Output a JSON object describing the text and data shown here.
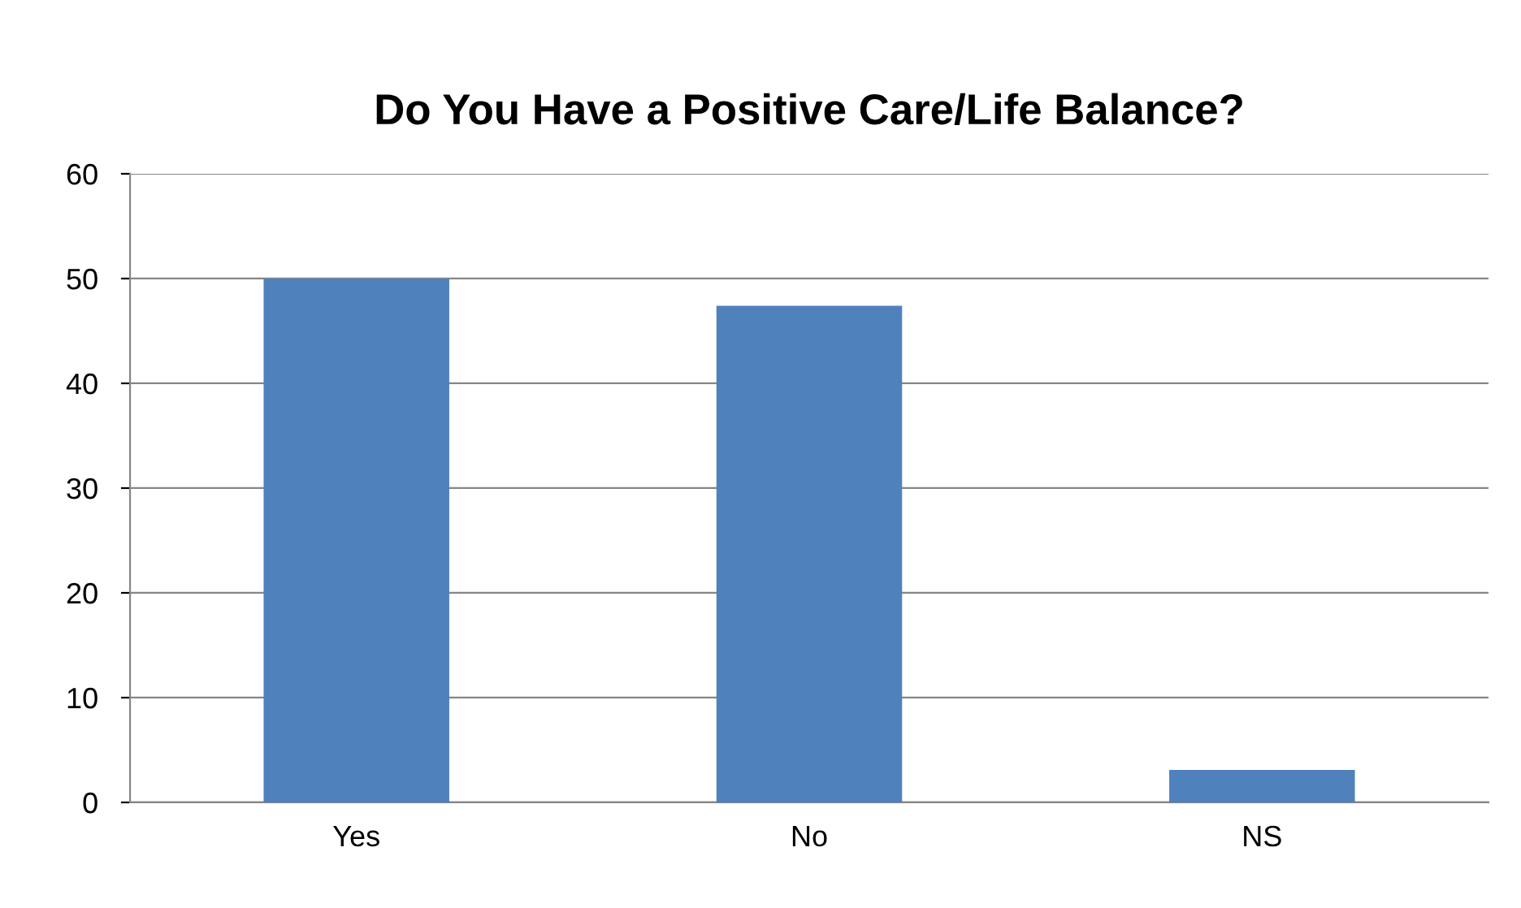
{
  "chart_data": {
    "type": "bar",
    "title": "Do You Have a Positive Care/Life Balance?",
    "categories": [
      "Yes",
      "No",
      "NS"
    ],
    "values": [
      50,
      47.4,
      3.1
    ],
    "color": "#4f81bd",
    "ylim": [
      0,
      60
    ],
    "yticks": [
      0,
      10,
      20,
      30,
      40,
      50,
      60
    ],
    "grid": "y",
    "legend": false
  }
}
